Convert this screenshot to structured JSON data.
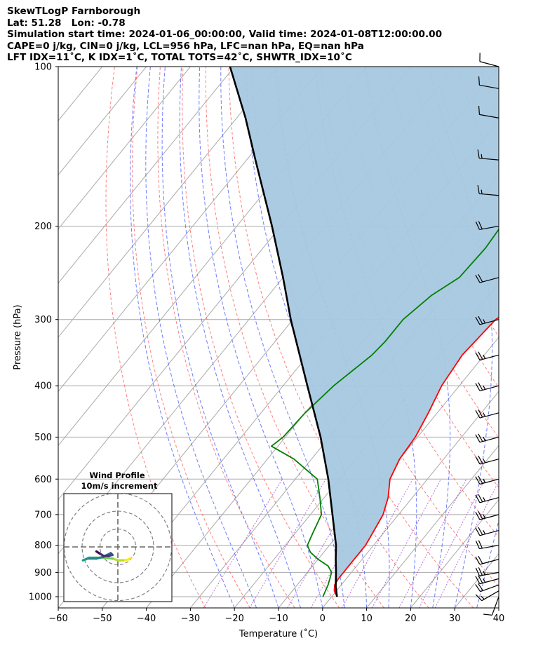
{
  "header": {
    "line1": "SkewTLogP Farnborough",
    "line2": "Lat: 51.28   Lon: -0.78",
    "line3": "Simulation start time: 2024-01-06_00:00:00, Valid time: 2024-01-08T12:00:00.00",
    "line4": "CAPE=0 j/kg, CIN=0 j/kg, LCL=956 hPa, LFC=nan hPa, EQ=nan hPa",
    "line5": "LFT IDX=11˚C, K IDX=1˚C, TOTAL TOTS=42˚C, SHWTR_IDX=10˚C"
  },
  "inset": {
    "title": "Wind Profile",
    "subtitle": "10m/s increment"
  },
  "colors": {
    "temperature": "#ff0000",
    "dewpoint": "#008000",
    "parcel": "#000000",
    "cape_fill": "#a6c8e0",
    "dry_adiabat": "#ff5555",
    "moist_adiabat": "#5566ff",
    "mixing_ratio": "#9933cc",
    "isotherm": "#aaaaaa"
  },
  "chart_data": {
    "type": "line",
    "xlabel": "Temperature (˚C)",
    "ylabel": "Pressure (hPa)",
    "xlim": [
      -60,
      40
    ],
    "ylim": [
      1050,
      100
    ],
    "y_scale": "log",
    "grid": true,
    "x_ticks": [
      -60,
      -50,
      -40,
      -30,
      -20,
      -10,
      0,
      10,
      20,
      30,
      40
    ],
    "x_tick_labels": [
      "−60",
      "−50",
      "−40",
      "−30",
      "−20",
      "−10",
      "0",
      "10",
      "20",
      "30",
      "40"
    ],
    "y_ticks": [
      1000,
      900,
      800,
      700,
      600,
      500,
      400,
      300,
      200,
      100
    ],
    "y_tick_labels": [
      "1000",
      "900",
      "800",
      "700",
      "600",
      "500",
      "400",
      "300",
      "200",
      "100"
    ],
    "series": [
      {
        "key": "temperature",
        "points": [
          [
            1000,
            1.2
          ],
          [
            975,
            -0.5
          ],
          [
            950,
            -1.5
          ],
          [
            925,
            -1.8
          ],
          [
            900,
            -1.8
          ],
          [
            875,
            -1.8
          ],
          [
            850,
            -1.8
          ],
          [
            800,
            -1.8
          ],
          [
            750,
            -2.6
          ],
          [
            700,
            -3.5
          ],
          [
            650,
            -5.5
          ],
          [
            600,
            -8.5
          ],
          [
            550,
            -10.0
          ],
          [
            500,
            -10.5
          ],
          [
            450,
            -12.0
          ],
          [
            400,
            -14.0
          ],
          [
            350,
            -15.0
          ],
          [
            300,
            -14.0
          ],
          [
            270,
            -10.0
          ],
          [
            250,
            -9.5
          ],
          [
            200,
            -6.5
          ],
          [
            170,
            -2.5
          ],
          [
            150,
            0.5
          ],
          [
            125,
            2.5
          ],
          [
            110,
            5.0
          ],
          [
            100,
            6.0
          ]
        ]
      },
      {
        "key": "dewpoint",
        "points": [
          [
            1000,
            -2.0
          ],
          [
            975,
            -2.5
          ],
          [
            950,
            -3.0
          ],
          [
            900,
            -4.5
          ],
          [
            875,
            -6.5
          ],
          [
            850,
            -10.0
          ],
          [
            825,
            -13.0
          ],
          [
            800,
            -15.0
          ],
          [
            760,
            -16.0
          ],
          [
            700,
            -17.5
          ],
          [
            650,
            -21.0
          ],
          [
            600,
            -25.0
          ],
          [
            550,
            -34.0
          ],
          [
            520,
            -41.5
          ],
          [
            500,
            -40.5
          ],
          [
            450,
            -40.0
          ],
          [
            400,
            -38.5
          ],
          [
            350,
            -35.5
          ],
          [
            330,
            -35.0
          ],
          [
            300,
            -35.0
          ],
          [
            270,
            -33.0
          ],
          [
            250,
            -30.0
          ],
          [
            220,
            -29.5
          ],
          [
            200,
            -30.0
          ],
          [
            185,
            -26.5
          ],
          [
            170,
            -23.5
          ],
          [
            160,
            -24.0
          ],
          [
            140,
            -22.5
          ],
          [
            120,
            -20.0
          ],
          [
            100,
            -17.5
          ]
        ]
      },
      {
        "key": "parcel",
        "points": [
          [
            1000,
            1.2
          ],
          [
            956,
            -1.0
          ],
          [
            900,
            -3.5
          ],
          [
            850,
            -6.0
          ],
          [
            800,
            -8.5
          ],
          [
            700,
            -15.0
          ],
          [
            600,
            -22.5
          ],
          [
            500,
            -32.0
          ],
          [
            400,
            -44.5
          ],
          [
            300,
            -60.5
          ],
          [
            250,
            -70.0
          ],
          [
            200,
            -82.0
          ],
          [
            150,
            -98.0
          ],
          [
            125,
            -108.0
          ],
          [
            100,
            -121.0
          ]
        ]
      }
    ],
    "winds": [
      {
        "p": 1000,
        "speed": 10,
        "dir": 200
      },
      {
        "p": 975,
        "speed": 15,
        "dir": 240
      },
      {
        "p": 950,
        "speed": 20,
        "dir": 250
      },
      {
        "p": 925,
        "speed": 25,
        "dir": 255
      },
      {
        "p": 900,
        "speed": 25,
        "dir": 260
      },
      {
        "p": 850,
        "speed": 20,
        "dir": 255
      },
      {
        "p": 800,
        "speed": 20,
        "dir": 260
      },
      {
        "p": 750,
        "speed": 25,
        "dir": 255
      },
      {
        "p": 700,
        "speed": 25,
        "dir": 255
      },
      {
        "p": 650,
        "speed": 25,
        "dir": 255
      },
      {
        "p": 600,
        "speed": 25,
        "dir": 255
      },
      {
        "p": 550,
        "speed": 25,
        "dir": 255
      },
      {
        "p": 500,
        "speed": 25,
        "dir": 255
      },
      {
        "p": 450,
        "speed": 25,
        "dir": 255
      },
      {
        "p": 400,
        "speed": 25,
        "dir": 255
      },
      {
        "p": 350,
        "speed": 25,
        "dir": 255
      },
      {
        "p": 300,
        "speed": 25,
        "dir": 255
      },
      {
        "p": 250,
        "speed": 20,
        "dir": 255
      },
      {
        "p": 200,
        "speed": 20,
        "dir": 260
      },
      {
        "p": 175,
        "speed": 15,
        "dir": 275
      },
      {
        "p": 150,
        "speed": 15,
        "dir": 275
      },
      {
        "p": 125,
        "speed": 10,
        "dir": 280
      },
      {
        "p": 110,
        "speed": 10,
        "dir": 280
      },
      {
        "p": 100,
        "speed": 10,
        "dir": 285
      }
    ],
    "hodograph": {
      "ring_step_ms": 10,
      "points": [
        [
          7.5,
          -6.0
        ],
        [
          6.0,
          -7.0
        ],
        [
          3.0,
          -7.5
        ],
        [
          0.0,
          -7.5
        ],
        [
          -3.0,
          -6.5
        ],
        [
          -8.0,
          -6.0
        ],
        [
          -12.0,
          -6.0
        ],
        [
          -16.0,
          -6.0
        ],
        [
          -18.0,
          -7.0
        ],
        [
          -19.5,
          -7.5
        ],
        [
          -17.0,
          -6.5
        ],
        [
          -12.0,
          -6.5
        ],
        [
          -8.0,
          -5.5
        ],
        [
          -6.0,
          -4.5
        ],
        [
          -4.0,
          -3.5
        ],
        [
          -3.0,
          -4.5
        ],
        [
          -5.0,
          -5.0
        ],
        [
          -8.0,
          -5.0
        ],
        [
          -10.5,
          -3.5
        ],
        [
          -12.0,
          -2.5
        ]
      ]
    }
  }
}
